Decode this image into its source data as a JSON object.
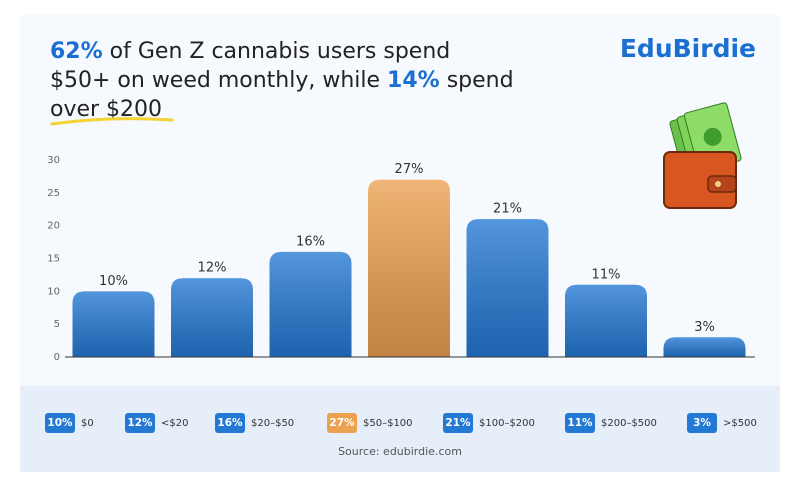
{
  "chart_data": {
    "type": "bar",
    "title_lines": [
      [
        {
          "text": "62%",
          "highlight": true
        },
        {
          "text": " of Gen Z cannabis users spend",
          "highlight": false
        }
      ],
      [
        {
          "text": "$50+ on weed monthly, while ",
          "highlight": false
        },
        {
          "text": "14%",
          "highlight": true
        },
        {
          "text": " spend",
          "highlight": false
        }
      ],
      [
        {
          "text": "over $200",
          "highlight": false
        }
      ]
    ],
    "brand": "EduBirdie",
    "source": "Source: edubirdie.com",
    "categories": [
      "$0",
      "<$20",
      "$20–$50",
      "$50–$100",
      "$100–$200",
      "$200–$500",
      ">$500"
    ],
    "values": [
      10,
      12,
      16,
      27,
      21,
      11,
      3
    ],
    "value_labels": [
      "10%",
      "12%",
      "16%",
      "27%",
      "21%",
      "11%",
      "3%"
    ],
    "colors": [
      "#2479d4",
      "#2479d4",
      "#2479d4",
      "#eca150",
      "#2479d4",
      "#2479d4",
      "#2479d4"
    ],
    "ylim": [
      0,
      30
    ],
    "yticks": [
      0,
      5,
      10,
      15,
      20,
      25,
      30
    ],
    "grid": false
  }
}
